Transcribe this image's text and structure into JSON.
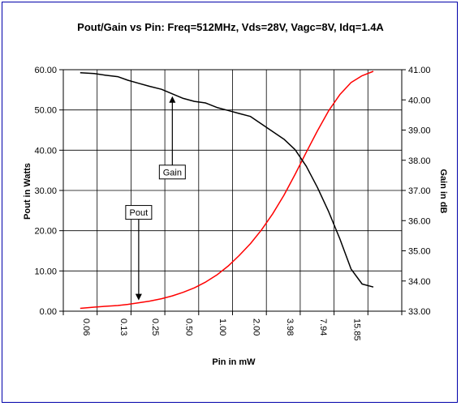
{
  "chart_data": {
    "type": "line",
    "title": "Pout/Gain vs Pin: Freq=512MHz, Vds=28V, Vagc=8V, Idq=1.4A",
    "xlabel": "Pin in mW",
    "ylabel": "Pout in Watts",
    "y2label": "Gain in dB",
    "x_scale": "log",
    "x_ticks": [
      "0.06",
      "0.13",
      "0.25",
      "0.50",
      "1.00",
      "2.00",
      "3.98",
      "7.94",
      "15.85"
    ],
    "ylim": [
      0,
      60
    ],
    "y_ticks": [
      "0.00",
      "10.00",
      "20.00",
      "30.00",
      "40.00",
      "50.00",
      "60.00"
    ],
    "y2lim": [
      33,
      41
    ],
    "y2_ticks": [
      "33.00",
      "34.00",
      "35.00",
      "36.00",
      "37.00",
      "38.00",
      "39.00",
      "40.00",
      "41.00"
    ],
    "grid": true,
    "series": [
      {
        "name": "Pout",
        "axis": "left",
        "color": "#ff0000",
        "points": [
          [
            0.06,
            0.7
          ],
          [
            0.08,
            1.0
          ],
          [
            0.1,
            1.2
          ],
          [
            0.13,
            1.4
          ],
          [
            0.16,
            1.7
          ],
          [
            0.2,
            2.1
          ],
          [
            0.25,
            2.5
          ],
          [
            0.32,
            3.1
          ],
          [
            0.4,
            3.8
          ],
          [
            0.5,
            4.7
          ],
          [
            0.63,
            5.8
          ],
          [
            0.79,
            7.2
          ],
          [
            1.0,
            9.0
          ],
          [
            1.26,
            11.2
          ],
          [
            1.58,
            13.8
          ],
          [
            2.0,
            16.8
          ],
          [
            2.51,
            20.2
          ],
          [
            3.16,
            24.2
          ],
          [
            3.98,
            28.8
          ],
          [
            5.01,
            34.0
          ],
          [
            6.31,
            39.5
          ],
          [
            7.94,
            44.8
          ],
          [
            10.0,
            49.8
          ],
          [
            12.59,
            53.8
          ],
          [
            15.85,
            56.8
          ],
          [
            19.95,
            58.5
          ],
          [
            25.12,
            59.6
          ]
        ]
      },
      {
        "name": "Gain",
        "axis": "right",
        "color": "#000000",
        "points": [
          [
            0.06,
            40.9
          ],
          [
            0.08,
            40.87
          ],
          [
            0.1,
            40.82
          ],
          [
            0.13,
            40.77
          ],
          [
            0.16,
            40.65
          ],
          [
            0.2,
            40.55
          ],
          [
            0.25,
            40.45
          ],
          [
            0.32,
            40.35
          ],
          [
            0.4,
            40.2
          ],
          [
            0.5,
            40.05
          ],
          [
            0.63,
            39.95
          ],
          [
            0.79,
            39.9
          ],
          [
            1.0,
            39.75
          ],
          [
            1.26,
            39.65
          ],
          [
            1.58,
            39.55
          ],
          [
            2.0,
            39.45
          ],
          [
            2.51,
            39.2
          ],
          [
            3.16,
            38.95
          ],
          [
            3.98,
            38.7
          ],
          [
            5.01,
            38.35
          ],
          [
            6.31,
            37.8
          ],
          [
            7.94,
            37.1
          ],
          [
            10.0,
            36.3
          ],
          [
            12.59,
            35.4
          ],
          [
            15.85,
            34.4
          ],
          [
            19.95,
            33.9
          ],
          [
            25.12,
            33.8
          ]
        ]
      }
    ],
    "annotations": [
      {
        "text": "Gain",
        "series": "Gain",
        "arrow_x": 0.4
      },
      {
        "text": "Pout",
        "series": "Pout",
        "arrow_x": 0.2
      }
    ]
  }
}
